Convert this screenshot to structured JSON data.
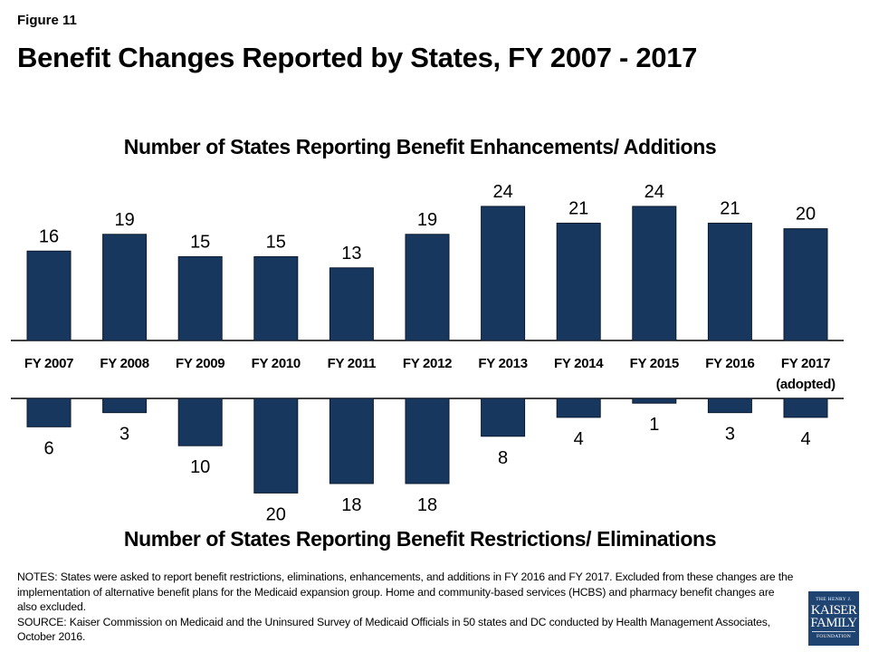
{
  "figure_label": "Figure 11",
  "title": "Benefit Changes Reported by States, FY 2007 - 2017",
  "colors": {
    "bar": "#17375E",
    "bar_outline": "#0b1a2e",
    "axis": "#000000",
    "logo_bg": "#1f4472"
  },
  "chart_data": [
    {
      "type": "bar",
      "title": "Number of States Reporting Benefit Enhancements/ Additions",
      "categories": [
        "FY 2007",
        "FY 2008",
        "FY 2009",
        "FY 2010",
        "FY 2011",
        "FY 2012",
        "FY 2013",
        "FY 2014",
        "FY 2015",
        "FY 2016",
        "FY 2017 (adopted)"
      ],
      "values": [
        16,
        19,
        15,
        15,
        13,
        19,
        24,
        21,
        24,
        21,
        20
      ],
      "direction": "up",
      "xlabel": "",
      "ylabel": "",
      "ylim": [
        0,
        24
      ],
      "grid": false,
      "data_labels": true
    },
    {
      "type": "bar",
      "title": "Number of States Reporting Benefit Restrictions/ Eliminations",
      "categories": [
        "FY 2007",
        "FY 2008",
        "FY 2009",
        "FY 2010",
        "FY 2011",
        "FY 2012",
        "FY 2013",
        "FY 2014",
        "FY 2015",
        "FY 2016",
        "FY 2017 (adopted)"
      ],
      "values": [
        6,
        3,
        10,
        20,
        18,
        18,
        8,
        4,
        1,
        3,
        4
      ],
      "direction": "down",
      "xlabel": "",
      "ylabel": "",
      "ylim": [
        0,
        20
      ],
      "grid": false,
      "data_labels": true
    }
  ],
  "category_labels": [
    [
      "FY 2007"
    ],
    [
      "FY 2008"
    ],
    [
      "FY 2009"
    ],
    [
      "FY 2010"
    ],
    [
      "FY 2011"
    ],
    [
      "FY 2012"
    ],
    [
      "FY 2013"
    ],
    [
      "FY 2014"
    ],
    [
      "FY 2015"
    ],
    [
      "FY 2016"
    ],
    [
      "FY 2017",
      "(adopted)"
    ]
  ],
  "notes": {
    "notes_text": "NOTES: States were asked to report benefit restrictions, eliminations, enhancements, and additions in FY 2016 and FY 2017. Excluded from these changes are the implementation of alternative benefit plans for the Medicaid expansion group. Home and community-based services (HCBS) and pharmacy benefit changes are also excluded.",
    "source_text": "SOURCE: Kaiser Commission on Medicaid and the Uninsured Survey of Medicaid Officials in 50 states and DC conducted by Health Management Associates, October 2016."
  },
  "logo": {
    "line1": "THE HENRY J.",
    "line2": "KAISER",
    "line3": "FAMILY",
    "line4": "FOUNDATION"
  }
}
